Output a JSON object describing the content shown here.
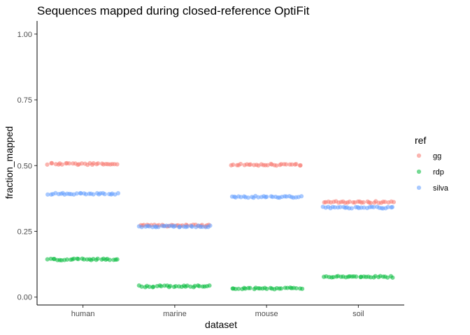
{
  "chart_data": {
    "type": "scatter",
    "title": "Sequences mapped during closed-reference OptiFit",
    "xlabel": "dataset",
    "ylabel": "fraction_mapped",
    "categories": [
      "human",
      "marine",
      "mouse",
      "soil"
    ],
    "ylim": [
      -0.03,
      1.05
    ],
    "yticks": [
      0.0,
      0.25,
      0.5,
      0.75,
      1.0
    ],
    "ytick_labels": [
      "0.00",
      "0.25",
      "0.50",
      "0.75",
      "1.00"
    ],
    "grid": false,
    "legend_position": "right",
    "legend_title": "ref",
    "points_per_group": 30,
    "series": [
      {
        "name": "gg",
        "color": "#F8766D",
        "values": [
          0.506,
          0.272,
          0.503,
          0.361
        ]
      },
      {
        "name": "rdp",
        "color": "#00BA38",
        "values": [
          0.143,
          0.041,
          0.033,
          0.077
        ]
      },
      {
        "name": "silva",
        "color": "#619CFF",
        "values": [
          0.393,
          0.269,
          0.381,
          0.34
        ]
      }
    ]
  }
}
